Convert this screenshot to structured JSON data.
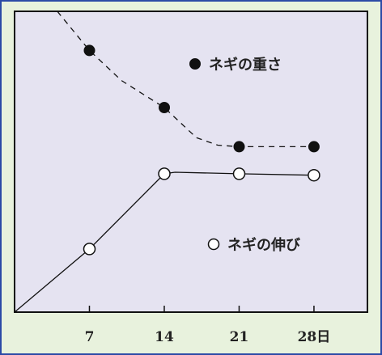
{
  "chart_data": {
    "type": "line",
    "x": [
      0,
      7,
      14,
      21,
      28
    ],
    "x_tick_labels": [
      "7",
      "14",
      "21",
      "28日"
    ],
    "x_ticks": [
      7,
      14,
      21,
      28
    ],
    "xlim": [
      0,
      33
    ],
    "ylim": [
      0,
      100
    ],
    "grid": false,
    "legend_placement": "inline",
    "series": [
      {
        "name": "ネギの重さ",
        "marker": "filled-circle",
        "line": "dashed",
        "points": [
          [
            7,
            87
          ],
          [
            14,
            68
          ],
          [
            21,
            55
          ],
          [
            28,
            55
          ]
        ],
        "curve": [
          [
            4,
            100
          ],
          [
            7,
            87
          ],
          [
            10,
            77
          ],
          [
            14,
            68
          ],
          [
            17,
            58
          ],
          [
            19,
            55.5
          ],
          [
            21,
            55
          ],
          [
            28,
            55
          ]
        ]
      },
      {
        "name": "ネギの伸び",
        "marker": "open-circle",
        "line": "solid",
        "points": [
          [
            7,
            21
          ],
          [
            14,
            46
          ],
          [
            21,
            46
          ],
          [
            28,
            45.5
          ]
        ],
        "curve": [
          [
            0,
            0
          ],
          [
            7,
            21
          ],
          [
            14,
            46
          ],
          [
            15,
            46.5
          ],
          [
            21,
            46
          ],
          [
            28,
            45.5
          ]
        ]
      }
    ],
    "legend": [
      {
        "label": "ネギの重さ",
        "marker": "filled-circle"
      },
      {
        "label": "ネギの伸び",
        "marker": "open-circle"
      }
    ]
  },
  "colors": {
    "plot_background": "#e5e3f1",
    "outer_background": "#e8f2dd",
    "frame_border": "#2c4aa6",
    "ink": "#111111"
  }
}
